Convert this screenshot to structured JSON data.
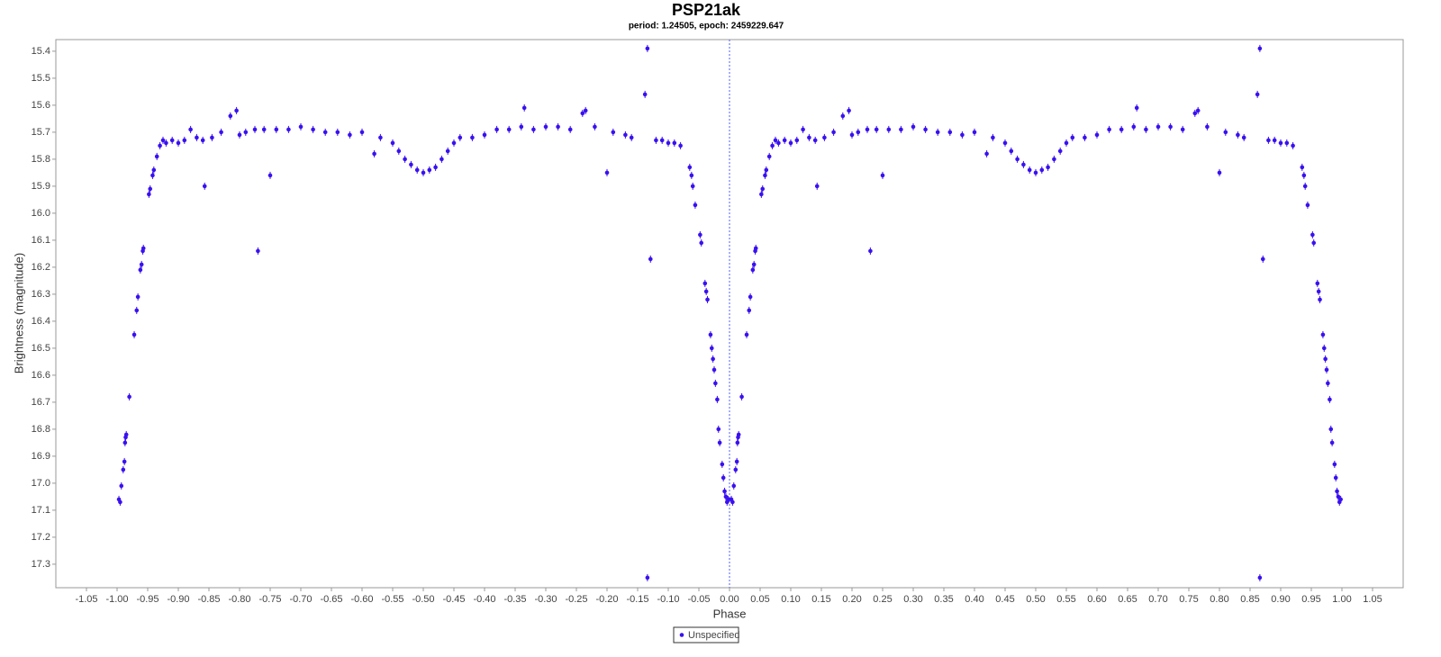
{
  "chart_data": {
    "type": "scatter",
    "title": "PSP21ak",
    "subtitle": "period: 1.24505, epoch: 2459229.647",
    "x_label": "Phase",
    "y_label": "Brightness (magnitude)",
    "xlim": [
      -1.1,
      1.1
    ],
    "ylim": [
      17.387,
      15.357
    ],
    "xticks": [
      -1.05,
      {
        "value": -1,
        "label": "-1.00"
      },
      -0.95,
      {
        "value": -0.9,
        "label": "-0.90"
      },
      -0.85,
      {
        "value": -0.8,
        "label": "-0.80"
      },
      -0.75,
      {
        "value": -0.7,
        "label": "-0.70"
      },
      -0.65,
      {
        "value": -0.6,
        "label": "-0.60"
      },
      -0.55,
      {
        "value": -0.5,
        "label": "-0.50"
      },
      -0.45,
      {
        "value": -0.4,
        "label": "-0.40"
      },
      -0.35,
      {
        "value": -0.3,
        "label": "-0.30"
      },
      -0.25,
      {
        "value": -0.2,
        "label": "-0.20"
      },
      -0.15,
      {
        "value": -0.1,
        "label": "-0.10"
      },
      -0.05,
      {
        "value": 0,
        "label": "0.00"
      },
      0.05,
      {
        "value": 0.1,
        "label": "0.10"
      },
      0.15,
      {
        "value": 0.2,
        "label": "0.20"
      },
      0.25,
      {
        "value": 0.3,
        "label": "0.30"
      },
      0.35,
      {
        "value": 0.4,
        "label": "0.40"
      },
      0.45,
      {
        "value": 0.5,
        "label": "0.50"
      },
      0.55,
      {
        "value": 0.6,
        "label": "0.60"
      },
      0.65,
      {
        "value": 0.7,
        "label": "0.70"
      },
      0.75,
      {
        "value": 0.8,
        "label": "0.80"
      },
      0.85,
      {
        "value": 0.9,
        "label": "0.90"
      },
      0.95,
      {
        "value": 1,
        "label": "1.00"
      },
      1.05
    ],
    "yticks": [
      15.4,
      15.5,
      15.6,
      15.7,
      15.8,
      15.9,
      {
        "value": 16,
        "label": "16.0"
      },
      16.1,
      16.2,
      16.3,
      16.4,
      16.5,
      16.6,
      16.7,
      16.8,
      16.9,
      {
        "value": 17,
        "label": "17.0"
      },
      17.1,
      17.2,
      17.3
    ],
    "reference_line_x": 0,
    "legend": "bottom",
    "series": [
      {
        "name": "Unspecified",
        "color": "#3a10f0",
        "x": [
          -0.997,
          -0.995,
          -0.993,
          -0.99,
          -0.988,
          -0.987,
          -0.986,
          -0.985,
          -0.98,
          -0.972,
          -0.968,
          -0.966,
          -0.962,
          -0.96,
          -0.958,
          -0.957,
          -0.948,
          -0.946,
          -0.942,
          -0.94,
          -0.935,
          -0.93,
          -0.925,
          -0.92,
          -0.91,
          -0.9,
          -0.89,
          -0.88,
          -0.87,
          -0.86,
          -0.857,
          -0.845,
          -0.83,
          -0.815,
          -0.805,
          -0.8,
          -0.79,
          -0.775,
          -0.77,
          -0.76,
          -0.75,
          -0.74,
          -0.72,
          -0.7,
          -0.68,
          -0.66,
          -0.64,
          -0.62,
          -0.6,
          -0.58,
          -0.57,
          -0.55,
          -0.54,
          -0.53,
          -0.52,
          -0.51,
          -0.5,
          -0.49,
          -0.48,
          -0.47,
          -0.46,
          -0.45,
          -0.44,
          -0.42,
          -0.4,
          -0.38,
          -0.36,
          -0.34,
          -0.335,
          -0.32,
          -0.3,
          -0.28,
          -0.26,
          -0.24,
          -0.235,
          -0.22,
          -0.2,
          -0.19,
          -0.17,
          -0.16,
          -0.138,
          -0.134,
          -0.134,
          -0.129,
          -0.12,
          -0.11,
          -0.1,
          -0.09,
          -0.08,
          -0.065,
          -0.062,
          -0.06,
          -0.056,
          -0.048,
          -0.046,
          -0.04,
          -0.038,
          -0.036,
          -0.031,
          -0.029,
          -0.027,
          -0.025,
          -0.023,
          -0.02,
          -0.018,
          -0.016,
          -0.012,
          -0.01,
          -0.008,
          -0.006,
          -0.004,
          -0.002,
          0.003,
          0.005,
          0.007,
          0.01,
          0.012,
          0.013,
          0.014,
          0.015,
          0.02,
          0.028,
          0.032,
          0.034,
          0.038,
          0.04,
          0.042,
          0.043,
          0.052,
          0.054,
          0.058,
          0.06,
          0.065,
          0.07,
          0.075,
          0.08,
          0.09,
          0.1,
          0.11,
          0.12,
          0.13,
          0.14,
          0.143,
          0.155,
          0.17,
          0.185,
          0.195,
          0.2,
          0.21,
          0.225,
          0.23,
          0.24,
          0.25,
          0.26,
          0.28,
          0.3,
          0.32,
          0.34,
          0.36,
          0.38,
          0.4,
          0.42,
          0.43,
          0.45,
          0.46,
          0.47,
          0.48,
          0.49,
          0.5,
          0.51,
          0.52,
          0.53,
          0.54,
          0.55,
          0.56,
          0.58,
          0.6,
          0.62,
          0.64,
          0.66,
          0.665,
          0.68,
          0.7,
          0.72,
          0.74,
          0.76,
          0.765,
          0.78,
          0.8,
          0.81,
          0.83,
          0.84,
          0.862,
          0.866,
          0.866,
          0.871,
          0.88,
          0.89,
          0.9,
          0.91,
          0.92,
          0.935,
          0.938,
          0.94,
          0.944,
          0.952,
          0.954,
          0.96,
          0.962,
          0.964,
          0.969,
          0.971,
          0.973,
          0.975,
          0.977,
          0.98,
          0.982,
          0.984,
          0.988,
          0.99,
          0.992,
          0.994,
          0.996,
          0.998
        ],
        "values": [
          17.06,
          17.07,
          17.01,
          16.95,
          16.92,
          16.85,
          16.83,
          16.82,
          16.68,
          16.45,
          16.36,
          16.31,
          16.21,
          16.19,
          16.14,
          16.13,
          15.93,
          15.91,
          15.86,
          15.84,
          15.79,
          15.75,
          15.73,
          15.74,
          15.73,
          15.74,
          15.73,
          15.69,
          15.72,
          15.73,
          15.9,
          15.72,
          15.7,
          15.64,
          15.62,
          15.71,
          15.7,
          15.69,
          16.14,
          15.69,
          15.86,
          15.69,
          15.69,
          15.68,
          15.69,
          15.7,
          15.7,
          15.71,
          15.7,
          15.78,
          15.72,
          15.74,
          15.77,
          15.8,
          15.82,
          15.84,
          15.85,
          15.84,
          15.83,
          15.8,
          15.77,
          15.74,
          15.72,
          15.72,
          15.71,
          15.69,
          15.69,
          15.68,
          15.61,
          15.69,
          15.68,
          15.68,
          15.69,
          15.63,
          15.62,
          15.68,
          15.85,
          15.7,
          15.71,
          15.72,
          15.56,
          15.39,
          17.35,
          16.17,
          15.73,
          15.73,
          15.74,
          15.74,
          15.75,
          15.83,
          15.86,
          15.9,
          15.97,
          16.08,
          16.11,
          16.26,
          16.29,
          16.32,
          16.45,
          16.5,
          16.54,
          16.58,
          16.63,
          16.69,
          16.8,
          16.85,
          16.93,
          16.98,
          17.03,
          17.05,
          17.07,
          17.06,
          17.06,
          17.07,
          17.01,
          16.95,
          16.92,
          16.85,
          16.83,
          16.82,
          16.68,
          16.45,
          16.36,
          16.31,
          16.21,
          16.19,
          16.14,
          16.13,
          15.93,
          15.91,
          15.86,
          15.84,
          15.79,
          15.75,
          15.73,
          15.74,
          15.73,
          15.74,
          15.73,
          15.69,
          15.72,
          15.73,
          15.9,
          15.72,
          15.7,
          15.64,
          15.62,
          15.71,
          15.7,
          15.69,
          16.14,
          15.69,
          15.86,
          15.69,
          15.69,
          15.68,
          15.69,
          15.7,
          15.7,
          15.71,
          15.7,
          15.78,
          15.72,
          15.74,
          15.77,
          15.8,
          15.82,
          15.84,
          15.85,
          15.84,
          15.83,
          15.8,
          15.77,
          15.74,
          15.72,
          15.72,
          15.71,
          15.69,
          15.69,
          15.68,
          15.61,
          15.69,
          15.68,
          15.68,
          15.69,
          15.63,
          15.62,
          15.68,
          15.85,
          15.7,
          15.71,
          15.72,
          15.56,
          15.39,
          17.35,
          16.17,
          15.73,
          15.73,
          15.74,
          15.74,
          15.75,
          15.83,
          15.86,
          15.9,
          15.97,
          16.08,
          16.11,
          16.26,
          16.29,
          16.32,
          16.45,
          16.5,
          16.54,
          16.58,
          16.63,
          16.69,
          16.8,
          16.85,
          16.93,
          16.98,
          17.03,
          17.05,
          17.07,
          17.06
        ]
      }
    ]
  }
}
